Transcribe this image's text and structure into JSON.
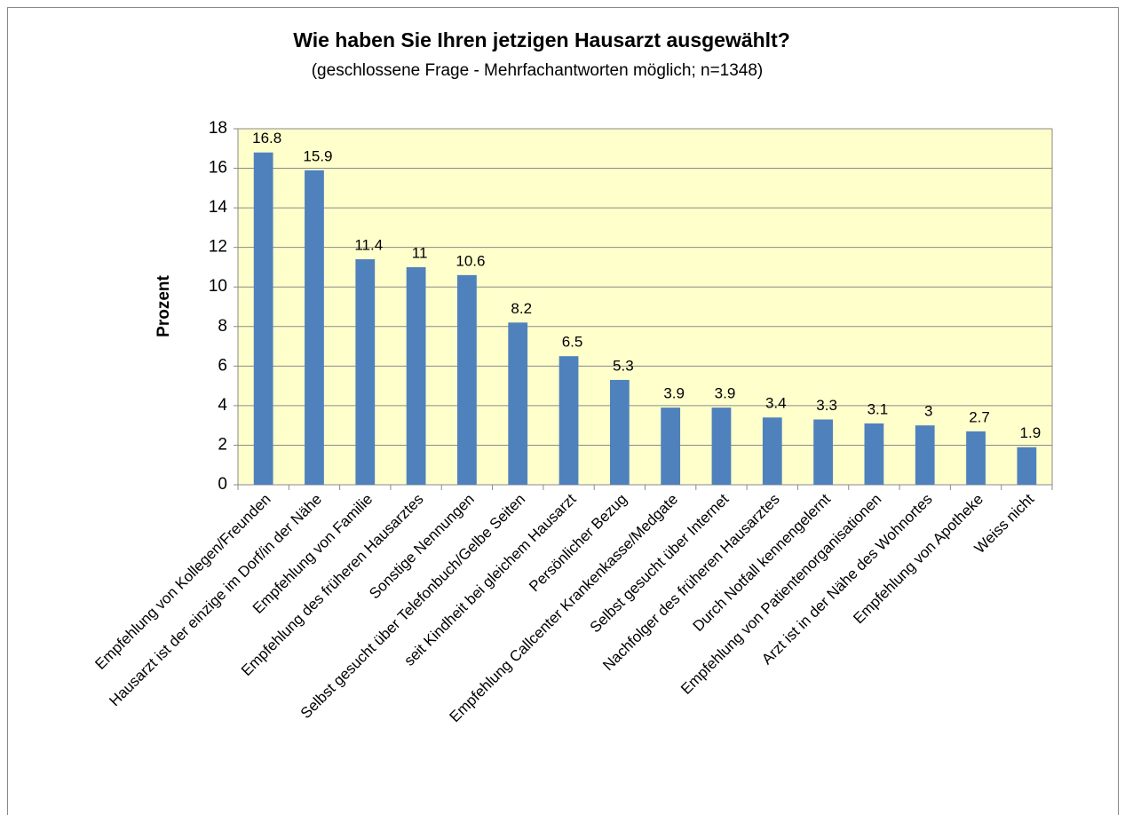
{
  "chart_data": {
    "type": "bar",
    "title": "Wie haben Sie Ihren jetzigen Hausarzt ausgewählt?",
    "subtitle": "(geschlossene Frage - Mehrfachantworten möglich; n=1348)",
    "y_label": "Prozent",
    "categories": [
      "Empfehlung von Kollegen/Freunden",
      "Hausarzt ist der einzige im Dorf/in der Nähe",
      "Empfehlung von Familie",
      "Empfehlung des früheren Hausarztes",
      "Sonstige Nennungen",
      "Selbst gesucht über Telefonbuch/Gelbe Seiten",
      "seit Kindheit bei gleichem Hausarzt",
      "Persönlicher Bezug",
      "Empfehlung Callcenter Krankenkasse/Medgate",
      "Selbst gesucht über Internet",
      "Nachfolger des früheren Hausarztes",
      "Durch Notfall kennengelernt",
      "Empfehlung von Patientenorganisationen",
      "Arzt ist in der Nähe des Wohnortes",
      "Empfehlung von Apotheke",
      "Weiss nicht"
    ],
    "values": [
      16.8,
      15.9,
      11.4,
      11,
      10.6,
      8.2,
      6.5,
      5.3,
      3.9,
      3.9,
      3.4,
      3.3,
      3.1,
      3,
      2.7,
      1.9
    ],
    "color": "#4f81bd",
    "ylim": [
      0,
      18
    ],
    "yticks": [
      0,
      2,
      4,
      6,
      8,
      10,
      12,
      14,
      16,
      18
    ],
    "grid": true
  }
}
